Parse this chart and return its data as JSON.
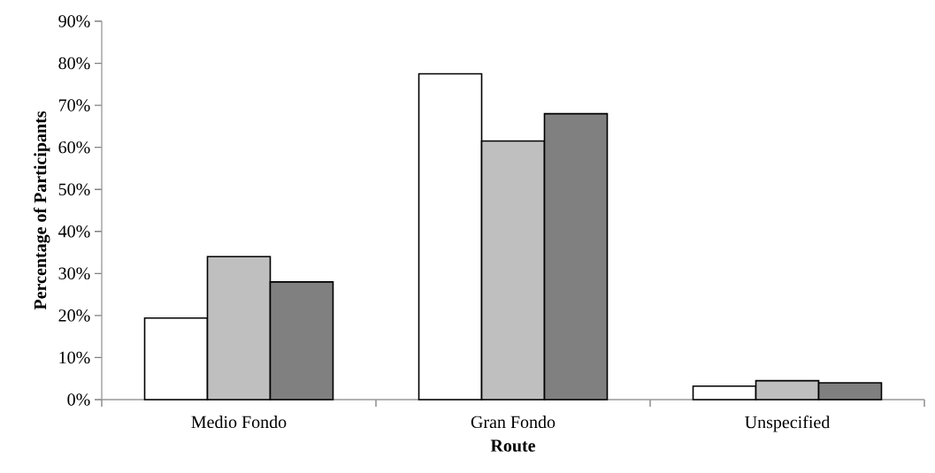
{
  "chart_data": {
    "type": "bar",
    "xlabel": "Route",
    "ylabel": "Percentage of Participants",
    "categories": [
      "Medio Fondo",
      "Gran Fondo",
      "Unspecified"
    ],
    "series": [
      {
        "color": "#ffffff",
        "values": [
          19.4,
          77.5,
          3.2
        ]
      },
      {
        "color": "#bfbfbf",
        "values": [
          34,
          61.5,
          4.5
        ]
      },
      {
        "color": "#808080",
        "values": [
          28,
          68,
          4.0
        ]
      }
    ],
    "ylim": [
      0,
      90
    ],
    "yticks": [
      {
        "value": 0,
        "label": "0%"
      },
      {
        "value": 10,
        "label": "10%"
      },
      {
        "value": 20,
        "label": "20%"
      },
      {
        "value": 30,
        "label": "30%"
      },
      {
        "value": 40,
        "label": "40%"
      },
      {
        "value": 50,
        "label": "50%"
      },
      {
        "value": 60,
        "label": "60%"
      },
      {
        "value": 70,
        "label": "70%"
      },
      {
        "value": 80,
        "label": "80%"
      },
      {
        "value": 90,
        "label": "90%"
      }
    ],
    "grid": false,
    "legend": false
  }
}
